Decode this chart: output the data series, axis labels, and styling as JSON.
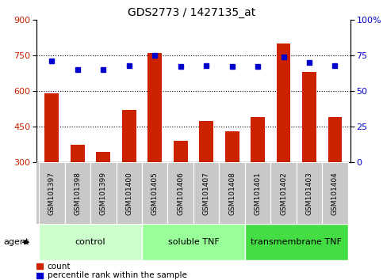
{
  "title": "GDS2773 / 1427135_at",
  "samples": [
    "GSM101397",
    "GSM101398",
    "GSM101399",
    "GSM101400",
    "GSM101405",
    "GSM101406",
    "GSM101407",
    "GSM101408",
    "GSM101401",
    "GSM101402",
    "GSM101403",
    "GSM101404"
  ],
  "counts": [
    590,
    375,
    345,
    520,
    760,
    390,
    475,
    430,
    490,
    800,
    680,
    490
  ],
  "percentiles": [
    71,
    65,
    65,
    68,
    75,
    67,
    68,
    67,
    67,
    74,
    70,
    68
  ],
  "ylim_left": [
    300,
    900
  ],
  "ylim_right": [
    0,
    100
  ],
  "yticks_left": [
    300,
    450,
    600,
    750,
    900
  ],
  "yticks_right": [
    0,
    25,
    50,
    75,
    100
  ],
  "bar_color": "#CC2200",
  "dot_color": "#0000CC",
  "groups": [
    {
      "label": "control",
      "start": 0,
      "end": 3,
      "color": "#CCFFCC"
    },
    {
      "label": "soluble TNF",
      "start": 4,
      "end": 7,
      "color": "#99FF99"
    },
    {
      "label": "transmembrane TNF",
      "start": 8,
      "end": 11,
      "color": "#44DD44"
    }
  ],
  "agent_label": "agent",
  "legend_count_label": "count",
  "legend_pct_label": "percentile rank within the sample",
  "tick_bg_color": "#C8C8C8",
  "title_fontsize": 10,
  "tick_label_fontsize": 6.5,
  "group_label_fontsize": 8,
  "legend_fontsize": 7.5
}
